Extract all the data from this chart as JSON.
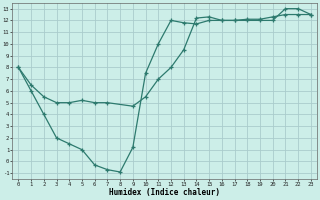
{
  "xlabel": "Humidex (Indice chaleur)",
  "bg_color": "#cceee8",
  "grid_color": "#aacccc",
  "line_color": "#2d7a6e",
  "xlim": [
    -0.5,
    23.5
  ],
  "ylim": [
    -1.5,
    13.5
  ],
  "xticks": [
    0,
    1,
    2,
    3,
    4,
    5,
    6,
    7,
    8,
    9,
    10,
    11,
    12,
    13,
    14,
    15,
    16,
    17,
    18,
    19,
    20,
    21,
    22,
    23
  ],
  "yticks": [
    -1,
    0,
    1,
    2,
    3,
    4,
    5,
    6,
    7,
    8,
    9,
    10,
    11,
    12,
    13
  ],
  "line1_x": [
    0,
    1,
    2,
    3,
    4,
    5,
    6,
    7,
    8,
    9,
    10,
    11,
    12,
    13,
    14,
    15,
    16,
    17,
    18,
    19,
    20,
    21,
    22,
    23
  ],
  "line1_y": [
    8,
    6,
    4,
    2,
    1.5,
    1.0,
    -0.3,
    -0.7,
    -0.9,
    1.2,
    7.5,
    10.0,
    12.0,
    11.8,
    11.7,
    12.0,
    12.0,
    12.0,
    12.0,
    12.0,
    12.0,
    13.0,
    13.0,
    12.5
  ],
  "line2_x": [
    0,
    1,
    2,
    3,
    4,
    5,
    6,
    7,
    9,
    10,
    11,
    12,
    13,
    14,
    15,
    16,
    17,
    18,
    19,
    20,
    21,
    22,
    23
  ],
  "line2_y": [
    8,
    6.5,
    5.5,
    5.0,
    5.0,
    5.2,
    5.0,
    5.0,
    4.7,
    5.5,
    7.0,
    8.0,
    9.5,
    12.2,
    12.3,
    12.0,
    12.0,
    12.1,
    12.1,
    12.3,
    12.5,
    12.5,
    12.5
  ]
}
